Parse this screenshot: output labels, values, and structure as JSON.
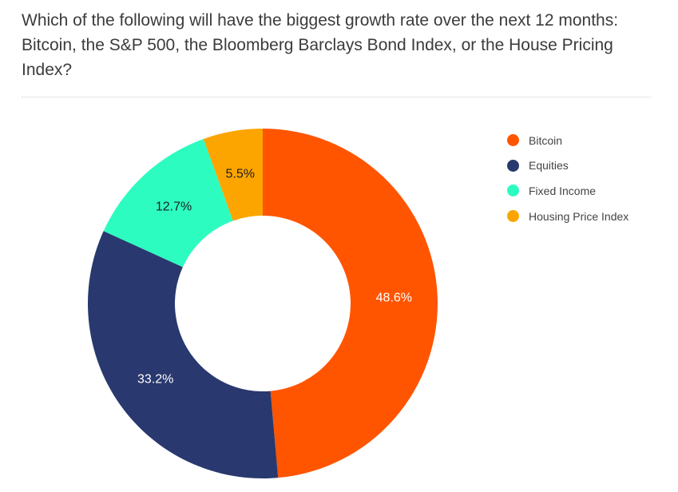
{
  "question": "Which of the following will have the biggest growth rate over the next 12 months: Bitcoin, the S&P 500, the Bloomberg Barclays Bond Index, or the House Pricing Index?",
  "chart_data": {
    "type": "pie",
    "donut": true,
    "legend_position": "right",
    "slices": [
      {
        "name": "Bitcoin",
        "value": 48.6,
        "label": "48.6%",
        "color": "#ff5500",
        "label_color": "#ffffff"
      },
      {
        "name": "Equities",
        "value": 33.2,
        "label": "33.2%",
        "color": "#29386e",
        "label_color": "#ffffff"
      },
      {
        "name": "Fixed Income",
        "value": 12.7,
        "label": "12.7%",
        "color": "#2dfcc0",
        "label_color": "#1e1e1e"
      },
      {
        "name": "Housing Price Index",
        "value": 5.5,
        "label": "5.5%",
        "color": "#fca500",
        "label_color": "#1e1e1e"
      }
    ]
  }
}
